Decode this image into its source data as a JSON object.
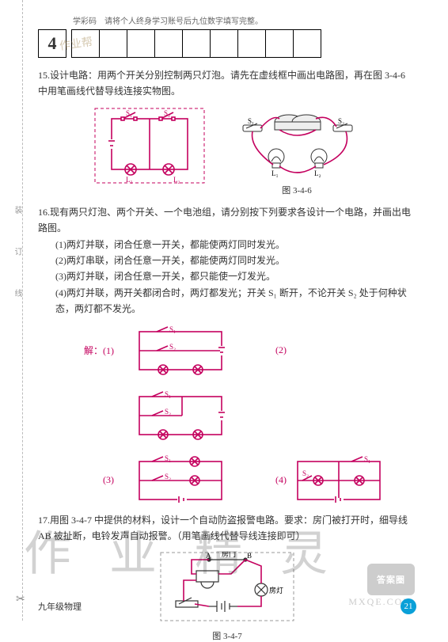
{
  "header": {
    "label": "学彩码",
    "instruction": "请将个人终身学习账号后九位数字填写完整。",
    "big_digit": "4",
    "cell_count": 9
  },
  "q15": {
    "num": "15.",
    "text": "设计电路：用两个开关分别控制两只灯泡。请先在虚线框中画出电路图，再在图 3-4-6 中用笔画线代替导线连接实物图。",
    "caption": "图 3-4-6",
    "diagram": {
      "color": "#c4005e",
      "frame_color": "#c4005e",
      "labels": {
        "s1": "S₁",
        "s2": "S₂",
        "l1": "L₁",
        "l2": "L₂"
      }
    }
  },
  "q16": {
    "num": "16.",
    "text": "现有两只灯泡、两个开关、一个电池组，请分别按下列要求各设计一个电路，并画出电路图。",
    "items": [
      "(1)两灯并联，闭合任意一开关，都能使两灯同时发光。",
      "(2)两灯串联，闭合任意一开关，都能使两灯同时发光。",
      "(3)两灯并联，闭合任意一开关，都只能使一灯发光。",
      "(4)两灯并联，两开关都闭合时，两灯都发光；开关 S₁ 断开，不论开关 S₂ 处于何种状态，两灯都不发光。"
    ],
    "answer_label": "解：(1)",
    "diagrams_color": "#c4005e",
    "sw_labels": {
      "s1": "S₁",
      "s2": "S₂"
    },
    "cell_labels": [
      "",
      "(2)",
      "(3)",
      "(4)"
    ]
  },
  "q17": {
    "num": "17.",
    "text": "用图 3-4-7 中提供的材料，设计一个自动防盗报警电路。要求：房门被打开时，细导线 AB 被扯断，电铃发声自动报警。（用笔画线代替导线连接即可）",
    "caption": "图 3-4-7",
    "labels": {
      "door": "房门",
      "a": "A",
      "b": "B",
      "lamp": "房灯"
    },
    "wire_color": "#c4005e"
  },
  "footer": {
    "left": "九年级物理",
    "page": "21"
  },
  "watermarks": {
    "main": "作业精灵",
    "stamp": "作业帮",
    "badge": "答案圈",
    "url": "MXQE.COM"
  },
  "side": {
    "text": "装 订 线"
  }
}
